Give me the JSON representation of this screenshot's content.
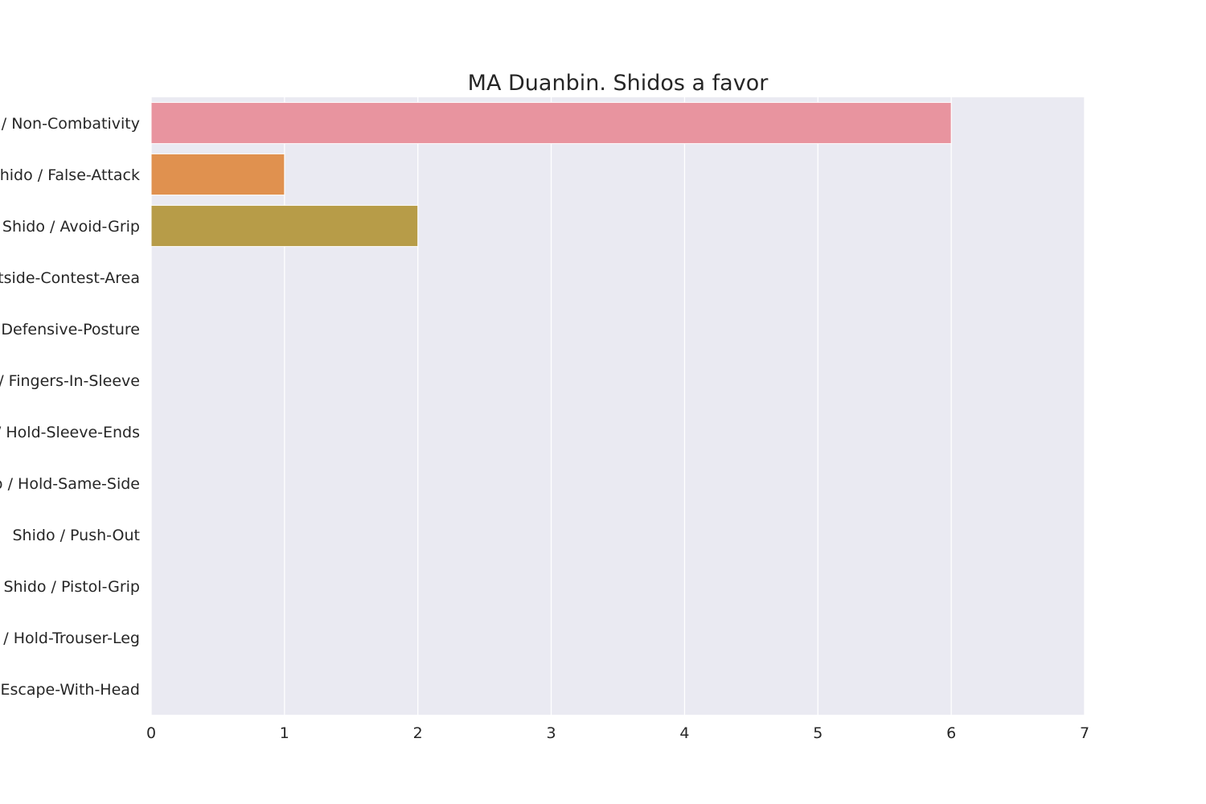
{
  "chart_data": {
    "type": "bar",
    "orientation": "horizontal",
    "title": "MA Duanbin. Shidos a favor",
    "xlabel": "",
    "ylabel": "",
    "xlim": [
      0,
      7
    ],
    "xticks": [
      "0",
      "1",
      "2",
      "3",
      "4",
      "5",
      "6",
      "7"
    ],
    "grid": true,
    "legend": "none",
    "categories": [
      "Shido / Non-Combativity",
      "Shido / False-Attack",
      "Shido / Avoid-Grip",
      "Shido / Outside-Contest-Area",
      "Shido / Defensive-Posture",
      "Shido / Fingers-In-Sleeve",
      "Shido / Hold-Sleeve-Ends",
      "Shido / Hold-Same-Side",
      "Shido / Push-Out",
      "Shido / Pistol-Grip",
      "Shido / Hold-Trouser-Leg",
      "Shido / Escape-With-Head"
    ],
    "values": [
      6,
      1,
      2,
      0,
      0,
      0,
      0,
      0,
      0,
      0,
      0,
      0
    ],
    "colors": [
      "#e8949f",
      "#e0914f",
      "#b79c48",
      "#9ba646",
      "#6aae48",
      "#4bac8b",
      "#4aa8a0",
      "#4ca6b5",
      "#5aa0d0",
      "#9c8fd6",
      "#d481d0",
      "#e183b2"
    ],
    "background_color": "#eaeaf2",
    "grid_color": "#ffffff"
  }
}
